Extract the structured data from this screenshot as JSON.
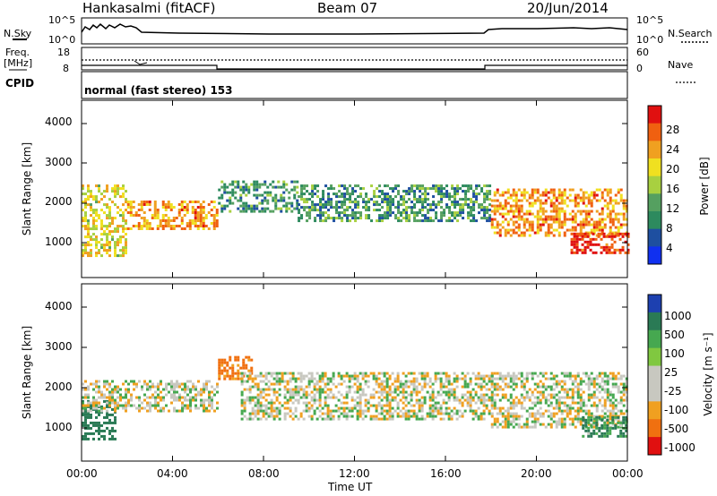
{
  "header": {
    "station": "Hankasalmi (fitACF)",
    "beam": "Beam 07",
    "date": "20/Jun/2014"
  },
  "noise_panel": {
    "left_label": "N.Sky",
    "right_label": "N.Search",
    "left_ticks": [
      "10^5",
      "10^0"
    ],
    "right_ticks": [
      "10^5",
      "10^0"
    ]
  },
  "freq_panel": {
    "left_label_1": "Freq.",
    "left_label_2": "[MHz]",
    "right_label": "Nave",
    "left_ticks": [
      "18",
      "8"
    ],
    "right_ticks": [
      "60",
      "0"
    ]
  },
  "cpid_panel": {
    "label": "CPID",
    "mode_text": "normal (fast stereo) 153"
  },
  "power_panel": {
    "ylabel": "Slant Range [km]",
    "yticks": [
      "4000",
      "3000",
      "2000",
      "1000"
    ],
    "colorbar_label": "Power [dB]",
    "colorbar_ticks": [
      "28",
      "24",
      "20",
      "16",
      "12",
      "8",
      "4"
    ],
    "colors": [
      "#1030f0",
      "#1e4fa0",
      "#2d8a5e",
      "#55a060",
      "#a8d040",
      "#f0e020",
      "#f0a020",
      "#f06010",
      "#e01010"
    ]
  },
  "velocity_panel": {
    "ylabel": "Slant Range [km]",
    "yticks": [
      "4000",
      "3000",
      "2000",
      "1000"
    ],
    "colorbar_label": "Velocity [m s⁻¹]",
    "colorbar_ticks": [
      "1000",
      "500",
      "100",
      "25",
      "-25",
      "-100",
      "-500",
      "-1000"
    ],
    "colors": [
      "#1d40b0",
      "#2a7a55",
      "#46a850",
      "#80c840",
      "#c8c8c0",
      "#c8c8c0",
      "#f0a020",
      "#f07010",
      "#e01010"
    ]
  },
  "x_axis": {
    "ticks": [
      "00:00",
      "04:00",
      "08:00",
      "12:00",
      "16:00",
      "20:00",
      "00:00"
    ],
    "label": "Time UT"
  },
  "chart_data": [
    {
      "type": "heatmap",
      "name": "Power",
      "x_range": [
        "00:00",
        "24:00"
      ],
      "y_range_km": [
        180,
        4600
      ],
      "color_range_db": [
        0,
        30
      ],
      "bands": [
        {
          "t": [
            0,
            2
          ],
          "range_km": [
            700,
            2500
          ],
          "db": 18
        },
        {
          "t": [
            2,
            6
          ],
          "range_km": [
            1400,
            2100
          ],
          "db": 22
        },
        {
          "t": [
            6,
            9.5
          ],
          "range_km": [
            1800,
            2600
          ],
          "db": 10
        },
        {
          "t": [
            9.5,
            18
          ],
          "range_km": [
            1600,
            2500
          ],
          "db": 10
        },
        {
          "t": [
            18,
            24
          ],
          "range_km": [
            1200,
            2400
          ],
          "db": 22
        },
        {
          "t": [
            21.5,
            24
          ],
          "range_km": [
            800,
            1300
          ],
          "db": 28
        }
      ]
    },
    {
      "type": "heatmap",
      "name": "Velocity",
      "x_range": [
        "00:00",
        "24:00"
      ],
      "y_range_km": [
        180,
        4600
      ],
      "color_range_ms": [
        -1000,
        1000
      ],
      "bands": [
        {
          "t": [
            0,
            1.5
          ],
          "range_km": [
            700,
            1700
          ],
          "v": 300
        },
        {
          "t": [
            0,
            6
          ],
          "range_km": [
            1400,
            2200
          ],
          "v": 0
        },
        {
          "t": [
            6,
            7.5
          ],
          "range_km": [
            2200,
            2800
          ],
          "v": -300
        },
        {
          "t": [
            7,
            18
          ],
          "range_km": [
            1200,
            2400
          ],
          "v": 0
        },
        {
          "t": [
            18,
            24
          ],
          "range_km": [
            1000,
            2400
          ],
          "v": 0
        },
        {
          "t": [
            22,
            24
          ],
          "range_km": [
            800,
            1300
          ],
          "v": 200
        }
      ]
    }
  ]
}
